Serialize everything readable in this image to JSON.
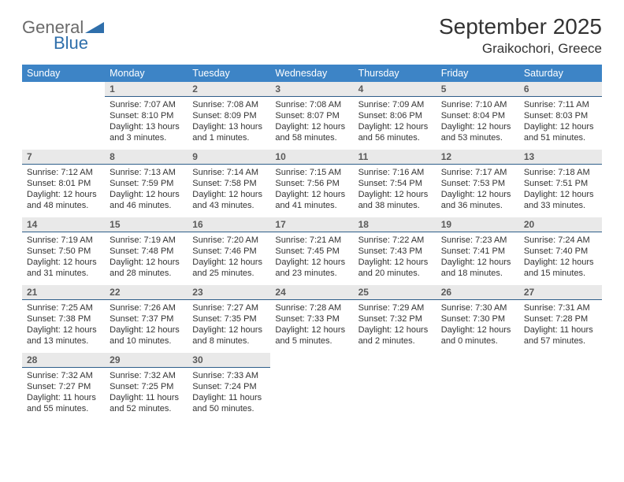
{
  "logo": {
    "word1": "General",
    "word2": "Blue",
    "word1_color": "#6a6a6a",
    "word2_color": "#2f6fab",
    "triangle_color": "#2f6fab"
  },
  "header": {
    "month_title": "September 2025",
    "location": "Graikochori, Greece"
  },
  "styling": {
    "dow_bg": "#3d84c6",
    "dow_fg": "#ffffff",
    "daynum_bg": "#e9e9e9",
    "daynum_border": "#2f5e8a",
    "text_color": "#333333",
    "page_bg": "#ffffff"
  },
  "days_of_week": [
    "Sunday",
    "Monday",
    "Tuesday",
    "Wednesday",
    "Thursday",
    "Friday",
    "Saturday"
  ],
  "weeks": [
    [
      {
        "n": "",
        "sr": "",
        "ss": "",
        "dl": ""
      },
      {
        "n": "1",
        "sr": "Sunrise: 7:07 AM",
        "ss": "Sunset: 8:10 PM",
        "dl": "Daylight: 13 hours and 3 minutes."
      },
      {
        "n": "2",
        "sr": "Sunrise: 7:08 AM",
        "ss": "Sunset: 8:09 PM",
        "dl": "Daylight: 13 hours and 1 minutes."
      },
      {
        "n": "3",
        "sr": "Sunrise: 7:08 AM",
        "ss": "Sunset: 8:07 PM",
        "dl": "Daylight: 12 hours and 58 minutes."
      },
      {
        "n": "4",
        "sr": "Sunrise: 7:09 AM",
        "ss": "Sunset: 8:06 PM",
        "dl": "Daylight: 12 hours and 56 minutes."
      },
      {
        "n": "5",
        "sr": "Sunrise: 7:10 AM",
        "ss": "Sunset: 8:04 PM",
        "dl": "Daylight: 12 hours and 53 minutes."
      },
      {
        "n": "6",
        "sr": "Sunrise: 7:11 AM",
        "ss": "Sunset: 8:03 PM",
        "dl": "Daylight: 12 hours and 51 minutes."
      }
    ],
    [
      {
        "n": "7",
        "sr": "Sunrise: 7:12 AM",
        "ss": "Sunset: 8:01 PM",
        "dl": "Daylight: 12 hours and 48 minutes."
      },
      {
        "n": "8",
        "sr": "Sunrise: 7:13 AM",
        "ss": "Sunset: 7:59 PM",
        "dl": "Daylight: 12 hours and 46 minutes."
      },
      {
        "n": "9",
        "sr": "Sunrise: 7:14 AM",
        "ss": "Sunset: 7:58 PM",
        "dl": "Daylight: 12 hours and 43 minutes."
      },
      {
        "n": "10",
        "sr": "Sunrise: 7:15 AM",
        "ss": "Sunset: 7:56 PM",
        "dl": "Daylight: 12 hours and 41 minutes."
      },
      {
        "n": "11",
        "sr": "Sunrise: 7:16 AM",
        "ss": "Sunset: 7:54 PM",
        "dl": "Daylight: 12 hours and 38 minutes."
      },
      {
        "n": "12",
        "sr": "Sunrise: 7:17 AM",
        "ss": "Sunset: 7:53 PM",
        "dl": "Daylight: 12 hours and 36 minutes."
      },
      {
        "n": "13",
        "sr": "Sunrise: 7:18 AM",
        "ss": "Sunset: 7:51 PM",
        "dl": "Daylight: 12 hours and 33 minutes."
      }
    ],
    [
      {
        "n": "14",
        "sr": "Sunrise: 7:19 AM",
        "ss": "Sunset: 7:50 PM",
        "dl": "Daylight: 12 hours and 31 minutes."
      },
      {
        "n": "15",
        "sr": "Sunrise: 7:19 AM",
        "ss": "Sunset: 7:48 PM",
        "dl": "Daylight: 12 hours and 28 minutes."
      },
      {
        "n": "16",
        "sr": "Sunrise: 7:20 AM",
        "ss": "Sunset: 7:46 PM",
        "dl": "Daylight: 12 hours and 25 minutes."
      },
      {
        "n": "17",
        "sr": "Sunrise: 7:21 AM",
        "ss": "Sunset: 7:45 PM",
        "dl": "Daylight: 12 hours and 23 minutes."
      },
      {
        "n": "18",
        "sr": "Sunrise: 7:22 AM",
        "ss": "Sunset: 7:43 PM",
        "dl": "Daylight: 12 hours and 20 minutes."
      },
      {
        "n": "19",
        "sr": "Sunrise: 7:23 AM",
        "ss": "Sunset: 7:41 PM",
        "dl": "Daylight: 12 hours and 18 minutes."
      },
      {
        "n": "20",
        "sr": "Sunrise: 7:24 AM",
        "ss": "Sunset: 7:40 PM",
        "dl": "Daylight: 12 hours and 15 minutes."
      }
    ],
    [
      {
        "n": "21",
        "sr": "Sunrise: 7:25 AM",
        "ss": "Sunset: 7:38 PM",
        "dl": "Daylight: 12 hours and 13 minutes."
      },
      {
        "n": "22",
        "sr": "Sunrise: 7:26 AM",
        "ss": "Sunset: 7:37 PM",
        "dl": "Daylight: 12 hours and 10 minutes."
      },
      {
        "n": "23",
        "sr": "Sunrise: 7:27 AM",
        "ss": "Sunset: 7:35 PM",
        "dl": "Daylight: 12 hours and 8 minutes."
      },
      {
        "n": "24",
        "sr": "Sunrise: 7:28 AM",
        "ss": "Sunset: 7:33 PM",
        "dl": "Daylight: 12 hours and 5 minutes."
      },
      {
        "n": "25",
        "sr": "Sunrise: 7:29 AM",
        "ss": "Sunset: 7:32 PM",
        "dl": "Daylight: 12 hours and 2 minutes."
      },
      {
        "n": "26",
        "sr": "Sunrise: 7:30 AM",
        "ss": "Sunset: 7:30 PM",
        "dl": "Daylight: 12 hours and 0 minutes."
      },
      {
        "n": "27",
        "sr": "Sunrise: 7:31 AM",
        "ss": "Sunset: 7:28 PM",
        "dl": "Daylight: 11 hours and 57 minutes."
      }
    ],
    [
      {
        "n": "28",
        "sr": "Sunrise: 7:32 AM",
        "ss": "Sunset: 7:27 PM",
        "dl": "Daylight: 11 hours and 55 minutes."
      },
      {
        "n": "29",
        "sr": "Sunrise: 7:32 AM",
        "ss": "Sunset: 7:25 PM",
        "dl": "Daylight: 11 hours and 52 minutes."
      },
      {
        "n": "30",
        "sr": "Sunrise: 7:33 AM",
        "ss": "Sunset: 7:24 PM",
        "dl": "Daylight: 11 hours and 50 minutes."
      },
      {
        "n": "",
        "sr": "",
        "ss": "",
        "dl": ""
      },
      {
        "n": "",
        "sr": "",
        "ss": "",
        "dl": ""
      },
      {
        "n": "",
        "sr": "",
        "ss": "",
        "dl": ""
      },
      {
        "n": "",
        "sr": "",
        "ss": "",
        "dl": ""
      }
    ]
  ]
}
